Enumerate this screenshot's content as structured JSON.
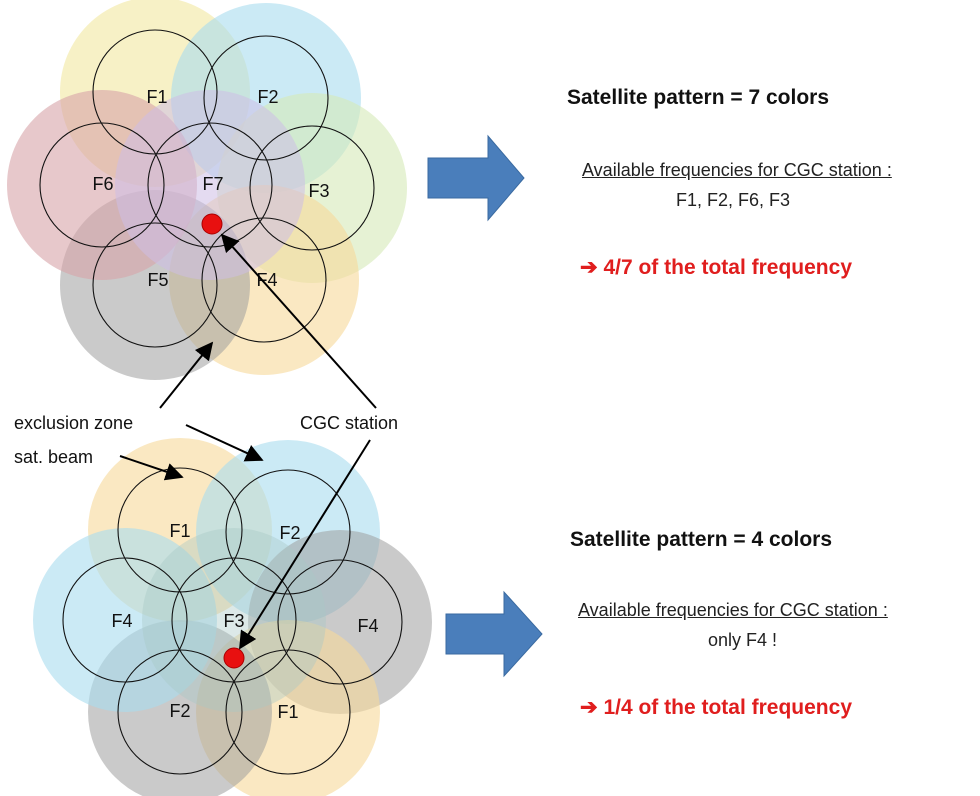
{
  "top": {
    "cells": [
      "F1",
      "F2",
      "F3",
      "F4",
      "F5",
      "F6",
      "F7"
    ],
    "title": "Satellite pattern = 7 colors",
    "avail_label": "Available frequencies for CGC station :",
    "avail_values": "F1, F2, F6, F3",
    "result": "4/7 of the total frequency"
  },
  "bottom": {
    "cells": [
      "F1",
      "F2",
      "F4",
      "F3",
      "F4",
      "F2",
      "F1"
    ],
    "title": "Satellite pattern = 4 colors",
    "avail_label": "Available frequencies for CGC station :",
    "avail_values": "only F4 !",
    "result": "1/4 of the total frequency"
  },
  "labels": {
    "exclusion_zone": "exclusion zone",
    "sat_beam": "sat. beam",
    "cgc_station": "CGC station"
  },
  "colors": {
    "yellow": "#f2e8a0",
    "cyan": "#a8dcef",
    "green": "#d6eab8",
    "orange": "#f7d89a",
    "gray": "#9e9e9e",
    "rose": "#d7a3a8",
    "lavender": "#cdbde6",
    "red_dot": "#e81010",
    "arrow_blue": "#4a7ebb",
    "result_red": "#e01e1e"
  }
}
